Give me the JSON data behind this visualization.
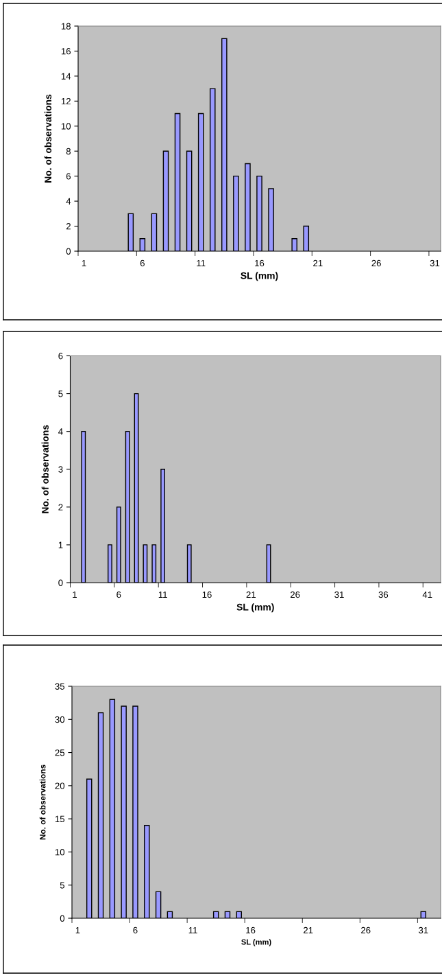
{
  "chart_data": [
    {
      "type": "bar",
      "xlabel": "SL (mm)",
      "ylabel": "No. of observations",
      "color": "#9999ff",
      "categories": [
        "1",
        null,
        null,
        null,
        null,
        "6",
        null,
        null,
        null,
        null,
        "11",
        null,
        null,
        null,
        null,
        "16",
        null,
        null,
        null,
        null,
        "21",
        null,
        null,
        null,
        null,
        "26",
        null,
        null,
        null,
        null,
        "31"
      ],
      "values": [
        0,
        0,
        0,
        0,
        3,
        1,
        3,
        8,
        11,
        8,
        11,
        13,
        17,
        6,
        7,
        6,
        5,
        0,
        1,
        2,
        0,
        0,
        0,
        0,
        0,
        0,
        0,
        0,
        0,
        0,
        0
      ],
      "ylim": [
        0,
        18
      ],
      "yticks": [
        0,
        2,
        4,
        6,
        8,
        10,
        12,
        14,
        16,
        18
      ],
      "grid": false
    },
    {
      "type": "bar",
      "xlabel": "SL (mm)",
      "ylabel": "No. of observations",
      "color": "#9999ff",
      "categories": [
        "1",
        null,
        null,
        null,
        null,
        "6",
        null,
        null,
        null,
        null,
        "11",
        null,
        null,
        null,
        null,
        "16",
        null,
        null,
        null,
        null,
        "21",
        null,
        null,
        null,
        null,
        "26",
        null,
        null,
        null,
        null,
        "31",
        null,
        null,
        null,
        null,
        "36",
        null,
        null,
        null,
        null,
        "41",
        null
      ],
      "values": [
        0,
        4,
        0,
        0,
        1,
        2,
        4,
        5,
        1,
        1,
        3,
        0,
        0,
        1,
        0,
        0,
        0,
        0,
        0,
        0,
        0,
        0,
        1,
        0,
        0,
        0,
        0,
        0,
        0,
        0,
        0,
        0,
        0,
        0,
        0,
        0,
        0,
        0,
        0,
        0,
        0,
        0
      ],
      "ylim": [
        0,
        6
      ],
      "yticks": [
        0,
        1,
        2,
        3,
        4,
        5,
        6
      ],
      "grid": false
    },
    {
      "type": "bar",
      "xlabel": "SL (mm)",
      "ylabel": "No. of observations",
      "color": "#9999ff",
      "categories": [
        "1",
        null,
        null,
        null,
        null,
        "6",
        null,
        null,
        null,
        null,
        "11",
        null,
        null,
        null,
        null,
        "16",
        null,
        null,
        null,
        null,
        "21",
        null,
        null,
        null,
        null,
        "26",
        null,
        null,
        null,
        null,
        "31",
        null
      ],
      "values": [
        0,
        21,
        31,
        33,
        32,
        32,
        14,
        4,
        1,
        0,
        0,
        0,
        1,
        1,
        1,
        0,
        0,
        0,
        0,
        0,
        0,
        0,
        0,
        0,
        0,
        0,
        0,
        0,
        0,
        0,
        1,
        0
      ],
      "ylim": [
        0,
        35
      ],
      "yticks": [
        0,
        5,
        10,
        15,
        20,
        25,
        30,
        35
      ],
      "grid": false
    }
  ]
}
